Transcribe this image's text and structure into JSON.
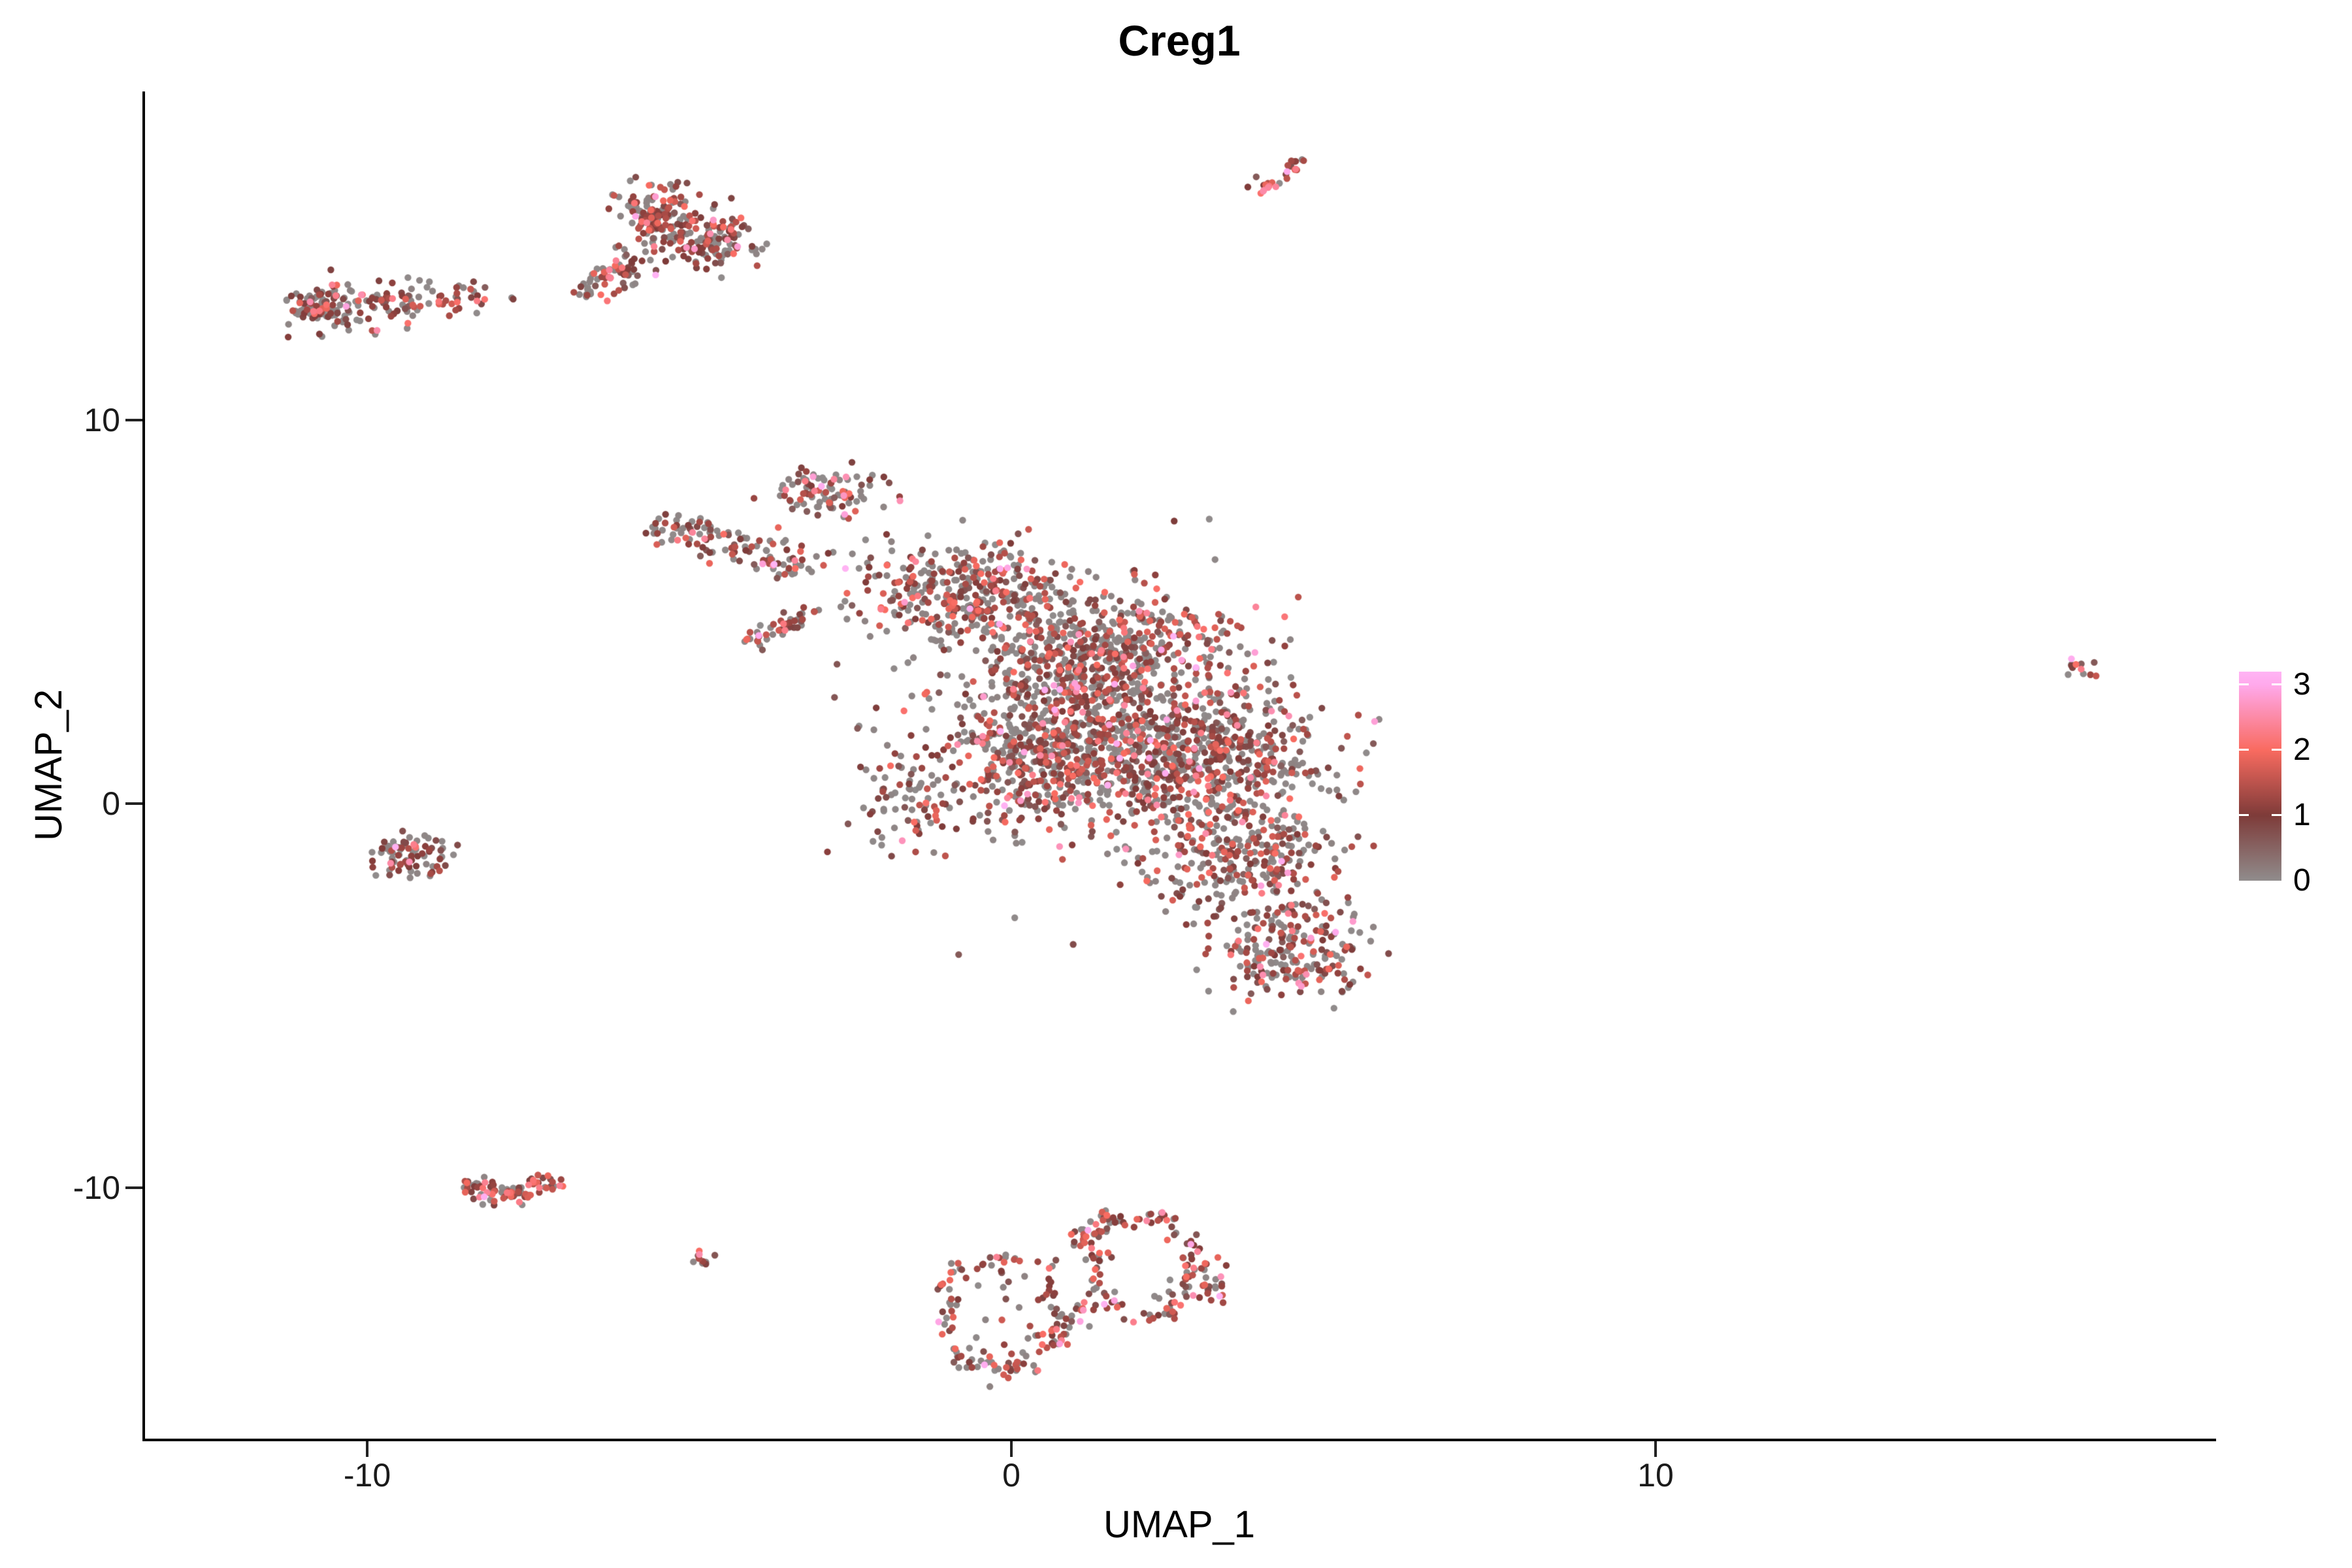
{
  "title": {
    "text": "Creg1"
  },
  "axes": {
    "x": {
      "title": "UMAP_1",
      "ticks": [
        {
          "label": "-10"
        },
        {
          "label": "0"
        },
        {
          "label": "10"
        }
      ]
    },
    "y": {
      "title": "UMAP_2",
      "ticks": [
        {
          "label": "10"
        },
        {
          "label": "0"
        },
        {
          "label": "-10"
        }
      ]
    }
  },
  "legend": {
    "labels": [
      {
        "text": "3"
      },
      {
        "text": "2"
      },
      {
        "text": "1"
      },
      {
        "text": "0"
      }
    ]
  },
  "chart_data": {
    "type": "scatter",
    "title": "Creg1",
    "xlabel": "UMAP_1",
    "ylabel": "UMAP_2",
    "xlim": [
      -13.47,
      18.68
    ],
    "ylim": [
      -16.56,
      18.55
    ],
    "x_ticks": [
      -10,
      0,
      10
    ],
    "y_ticks": [
      -10,
      0,
      10
    ],
    "grid": false,
    "legend_position": "right",
    "point_radius_px": 5.2,
    "seed": 7,
    "colorbar": {
      "min": 0,
      "max": 3.2,
      "tick_values": [
        0,
        1,
        2,
        3
      ],
      "stops": [
        {
          "v": 0,
          "color": "#908C8C"
        },
        {
          "v": 1,
          "color": "#7E3B39"
        },
        {
          "v": 2,
          "color": "#F96B60"
        },
        {
          "v": 3,
          "color": "#FFA9EC"
        },
        {
          "v": 3.2,
          "color": "#FFB4F4"
        }
      ]
    },
    "expression_mixes": {
      "default": [
        {
          "min": 0,
          "max": 0.12,
          "p": 0.46
        },
        {
          "min": 0.55,
          "max": 1.4,
          "p": 0.34
        },
        {
          "min": 1.4,
          "max": 2.05,
          "p": 0.13
        },
        {
          "min": 2.05,
          "max": 2.65,
          "p": 0.05
        },
        {
          "min": 2.65,
          "max": 3.2,
          "p": 0.02
        }
      ],
      "red_heavy": [
        {
          "min": 0,
          "max": 0.12,
          "p": 0.24
        },
        {
          "min": 0.6,
          "max": 1.5,
          "p": 0.45
        },
        {
          "min": 1.5,
          "max": 2.1,
          "p": 0.21
        },
        {
          "min": 2.1,
          "max": 2.7,
          "p": 0.08
        },
        {
          "min": 2.7,
          "max": 3.2,
          "p": 0.02
        }
      ],
      "gray_edge": [
        {
          "min": 0,
          "max": 0.12,
          "p": 0.55
        },
        {
          "min": 0.6,
          "max": 1.4,
          "p": 0.33
        },
        {
          "min": 1.4,
          "max": 2.0,
          "p": 0.1
        },
        {
          "min": 2.0,
          "max": 2.6,
          "p": 0.02
        }
      ],
      "ring": [
        {
          "min": 0,
          "max": 0.12,
          "p": 0.35
        },
        {
          "min": 0.6,
          "max": 1.5,
          "p": 0.42
        },
        {
          "min": 1.5,
          "max": 2.1,
          "p": 0.16
        },
        {
          "min": 2.1,
          "max": 2.7,
          "p": 0.05
        },
        {
          "min": 2.7,
          "max": 3.2,
          "p": 0.02
        }
      ]
    },
    "clusters": [
      {
        "name": "isolated-streak-top",
        "type": "streak",
        "from": [
          3.85,
          15.95
        ],
        "to": [
          4.52,
          16.8
        ],
        "width": 0.18,
        "n": 26,
        "mix": "red_heavy"
      },
      {
        "name": "upper-left-a",
        "type": "blob",
        "center": [
          -5.46,
          15.3
        ],
        "radius": [
          0.68,
          0.82
        ],
        "n": 150,
        "mix": "default"
      },
      {
        "name": "upper-left-b",
        "type": "blob",
        "center": [
          -4.62,
          14.6
        ],
        "radius": [
          0.62,
          0.7
        ],
        "n": 110,
        "mix": "default"
      },
      {
        "name": "upper-left-c",
        "type": "streak",
        "from": [
          -6.4,
          13.58
        ],
        "to": [
          -5.5,
          14.4
        ],
        "width": 0.45,
        "n": 55,
        "mix": "default"
      },
      {
        "name": "upper-left-d",
        "type": "blob",
        "center": [
          -6.66,
          13.25
        ],
        "radius": [
          0.3,
          0.3
        ],
        "n": 14,
        "mix": "default"
      },
      {
        "name": "far-left-a",
        "type": "blob",
        "center": [
          -10.6,
          12.98
        ],
        "radius": [
          0.62,
          0.6
        ],
        "n": 120,
        "mix": "default"
      },
      {
        "name": "far-left-b",
        "type": "streak",
        "from": [
          -10.0,
          13.08
        ],
        "to": [
          -8.2,
          13.1
        ],
        "width": 0.5,
        "n": 75,
        "mix": "default"
      },
      {
        "name": "far-left-stray",
        "type": "blob",
        "center": [
          -7.75,
          13.18
        ],
        "radius": [
          0.06,
          0.06
        ],
        "n": 2,
        "mix": "gray_edge"
      },
      {
        "name": "main-arm-tip",
        "type": "streak",
        "from": [
          -5.5,
          7.2
        ],
        "to": [
          -3.0,
          6.05
        ],
        "width": 0.5,
        "n": 120,
        "mix": "default"
      },
      {
        "name": "main-top-lobe",
        "type": "blob",
        "center": [
          -2.85,
          8.1
        ],
        "radius": [
          0.78,
          0.7
        ],
        "n": 95,
        "mix": "default"
      },
      {
        "name": "main-gap-streak",
        "type": "streak",
        "from": [
          -4.05,
          4.1
        ],
        "to": [
          -3.0,
          5.1
        ],
        "width": 0.22,
        "n": 45,
        "mix": "default"
      },
      {
        "name": "main-upper",
        "type": "blob",
        "center": [
          -0.7,
          5.5
        ],
        "radius": [
          1.7,
          1.35
        ],
        "n": 380,
        "mix": "default"
      },
      {
        "name": "main-center",
        "type": "blob",
        "center": [
          1.5,
          3.75
        ],
        "radius": [
          2.05,
          1.6
        ],
        "n": 640,
        "mix": "default"
      },
      {
        "name": "main-core",
        "type": "blob",
        "center": [
          2.65,
          1.2
        ],
        "radius": [
          2.25,
          1.8
        ],
        "n": 750,
        "mix": "default"
      },
      {
        "name": "main-left",
        "type": "blob",
        "center": [
          0.45,
          1.2
        ],
        "radius": [
          1.55,
          1.7
        ],
        "n": 420,
        "mix": "default"
      },
      {
        "name": "main-lower",
        "type": "blob",
        "center": [
          3.55,
          -1.35
        ],
        "radius": [
          1.55,
          1.45
        ],
        "n": 300,
        "mix": "default"
      },
      {
        "name": "main-bottom-lobe",
        "type": "blob",
        "center": [
          4.3,
          -3.8
        ],
        "radius": [
          1.2,
          1.3
        ],
        "n": 220,
        "mix": "default"
      },
      {
        "name": "main-halo",
        "type": "blob",
        "center": [
          1.0,
          1.9
        ],
        "radius": [
          3.4,
          4.4
        ],
        "n": 130,
        "mix": "gray_edge"
      },
      {
        "name": "main-left-low",
        "type": "blob",
        "center": [
          -1.7,
          0.0
        ],
        "radius": [
          0.95,
          1.5
        ],
        "n": 70,
        "mix": "default"
      },
      {
        "name": "left-mid",
        "type": "blob",
        "center": [
          -9.35,
          -1.35
        ],
        "radius": [
          0.62,
          0.58
        ],
        "n": 80,
        "mix": "default"
      },
      {
        "name": "bottom-left-a",
        "type": "streak",
        "from": [
          -8.5,
          -9.9
        ],
        "to": [
          -7.8,
          -10.25
        ],
        "width": 0.3,
        "n": 45,
        "mix": "red_heavy"
      },
      {
        "name": "bottom-left-b",
        "type": "streak",
        "from": [
          -7.8,
          -10.25
        ],
        "to": [
          -7.05,
          -9.8
        ],
        "width": 0.3,
        "n": 45,
        "mix": "red_heavy"
      },
      {
        "name": "bottom-tiny",
        "type": "blob",
        "center": [
          -4.85,
          -11.9
        ],
        "radius": [
          0.18,
          0.3
        ],
        "n": 10,
        "mix": "red_heavy"
      },
      {
        "name": "ring-left",
        "type": "ring",
        "center": [
          -0.18,
          -13.3
        ],
        "radius": [
          0.88,
          1.45
        ],
        "jitter": 0.13,
        "n": 115,
        "mix": "ring"
      },
      {
        "name": "ring-left-inner",
        "type": "blob",
        "center": [
          -0.18,
          -13.3
        ],
        "radius": [
          0.6,
          0.9
        ],
        "n": 12,
        "mix": "gray_edge"
      },
      {
        "name": "ring-right",
        "type": "ring",
        "center": [
          2.05,
          -12.05
        ],
        "radius": [
          0.78,
          1.3
        ],
        "jitter": 0.14,
        "n": 95,
        "mix": "ring"
      },
      {
        "name": "ring-bridge-low",
        "type": "streak",
        "from": [
          0.65,
          -14.1
        ],
        "to": [
          1.2,
          -12.9
        ],
        "width": 0.25,
        "n": 28,
        "mix": "ring"
      },
      {
        "name": "ring-tail-up",
        "type": "streak",
        "from": [
          1.0,
          -11.5
        ],
        "to": [
          1.55,
          -10.7
        ],
        "width": 0.25,
        "n": 32,
        "mix": "ring"
      },
      {
        "name": "ring-right-edge",
        "type": "blob",
        "center": [
          3.0,
          -12.25
        ],
        "radius": [
          0.42,
          0.85
        ],
        "n": 38,
        "mix": "ring"
      },
      {
        "name": "ring-pink-point",
        "type": "point",
        "center": [
          -1.13,
          -13.5
        ],
        "value": 2.95,
        "n": 1
      },
      {
        "name": "far-right-small",
        "type": "streak",
        "from": [
          16.45,
          3.72
        ],
        "to": [
          16.9,
          3.28
        ],
        "width": 0.22,
        "n": 13,
        "mix": "default"
      }
    ]
  }
}
